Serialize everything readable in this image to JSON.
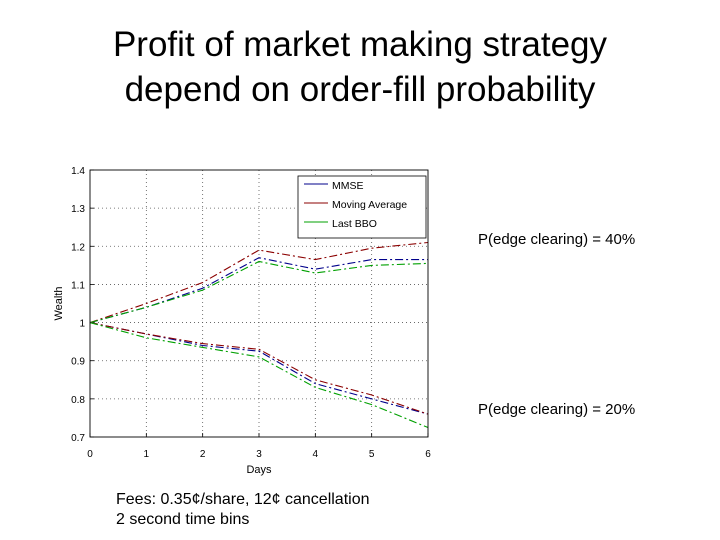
{
  "slide": {
    "title_line1": "Profit of market making strategy",
    "title_line2": "depend on order-fill probability",
    "annotation_40": "P(edge clearing) = 40%",
    "annotation_20": "P(edge clearing) = 20%",
    "fees_line1": "Fees: 0.35¢/share, 12¢ cancellation",
    "fees_line2": "2 second time bins"
  },
  "chart_data": {
    "type": "line",
    "xlabel": "Days",
    "ylabel": "Wealth",
    "xlim": [
      0,
      6
    ],
    "ylim": [
      0.7,
      1.4
    ],
    "xticks": [
      "0",
      "1",
      "2",
      "3",
      "4",
      "5",
      "6"
    ],
    "yticks": [
      "0.7",
      "0.8",
      "0.9",
      "1",
      "1.1",
      "1.2",
      "1.3",
      "1.4"
    ],
    "grid": true,
    "legend_position": "top-right",
    "x": [
      0,
      1,
      2,
      3,
      4,
      5,
      6
    ],
    "series": [
      {
        "name": "MMSE",
        "group": "40%",
        "color": "#00008b",
        "dash": "dashdot",
        "values": [
          1.0,
          1.04,
          1.09,
          1.17,
          1.14,
          1.165,
          1.165
        ]
      },
      {
        "name": "Moving Average",
        "group": "40%",
        "color": "#8b0000",
        "dash": "dashdot",
        "values": [
          1.0,
          1.05,
          1.105,
          1.19,
          1.165,
          1.195,
          1.21
        ]
      },
      {
        "name": "Last BBO",
        "group": "40%",
        "color": "#00a000",
        "dash": "dashdot",
        "values": [
          1.0,
          1.04,
          1.085,
          1.16,
          1.13,
          1.15,
          1.155
        ]
      },
      {
        "name": "MMSE",
        "group": "20%",
        "color": "#00008b",
        "dash": "dashdot",
        "values": [
          1.0,
          0.97,
          0.94,
          0.925,
          0.84,
          0.8,
          0.76
        ]
      },
      {
        "name": "Moving Average",
        "group": "20%",
        "color": "#8b0000",
        "dash": "dashdot",
        "values": [
          1.0,
          0.97,
          0.945,
          0.93,
          0.85,
          0.81,
          0.76
        ]
      },
      {
        "name": "Last BBO",
        "group": "20%",
        "color": "#00a000",
        "dash": "dashdot",
        "values": [
          1.0,
          0.96,
          0.935,
          0.91,
          0.83,
          0.785,
          0.725
        ]
      }
    ],
    "legend": [
      "MMSE",
      "Moving Average",
      "Last BBO"
    ]
  }
}
